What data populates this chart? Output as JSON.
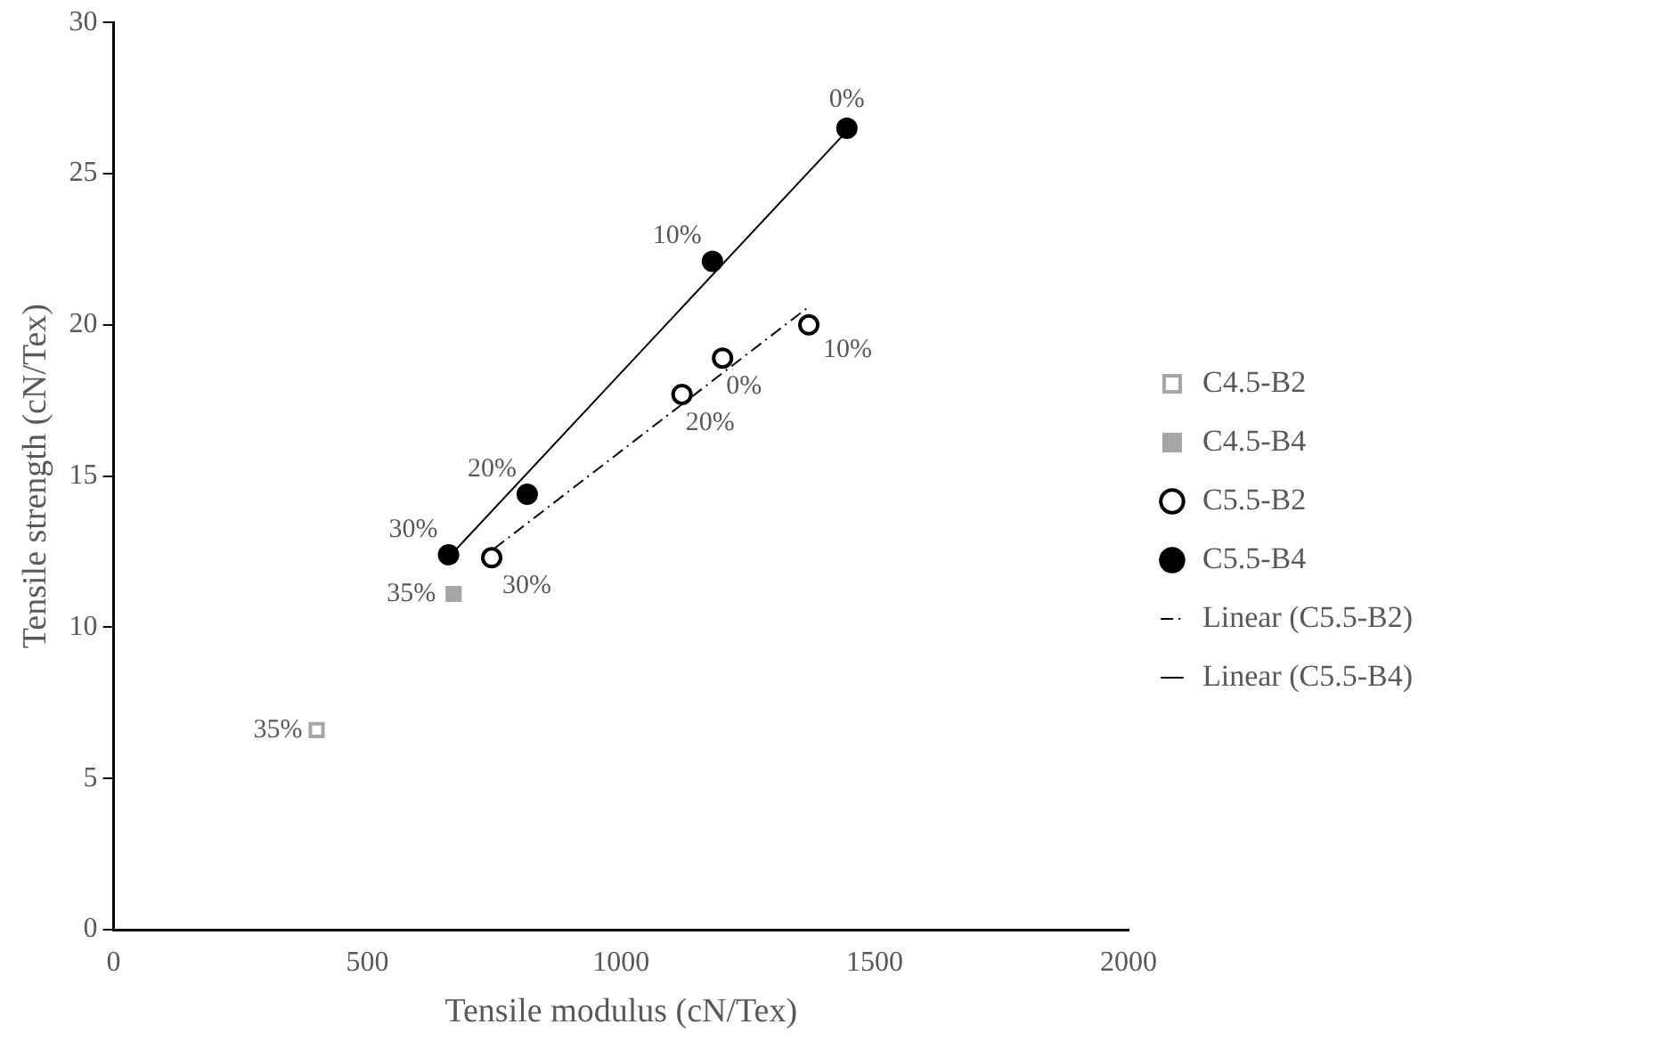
{
  "chart_data": {
    "type": "scatter",
    "xlabel": "Tensile modulus (cN/Tex)",
    "ylabel": "Tensile strength (cN/Tex)",
    "xlim": [
      0,
      2000
    ],
    "xticks": [
      0,
      500,
      1000,
      1500,
      2000
    ],
    "ylim": [
      0,
      30
    ],
    "yticks": [
      0,
      5,
      10,
      15,
      20,
      25,
      30
    ],
    "grid": false,
    "legend": "right",
    "annotations": [
      {
        "text": "35%",
        "x": 400,
        "y": 6.6
      },
      {
        "text": "35%",
        "x": 670,
        "y": 11.1
      },
      {
        "text": "0%",
        "x": 1200,
        "y": 18.9
      },
      {
        "text": "10%",
        "x": 1370,
        "y": 20.0
      },
      {
        "text": "20%",
        "x": 1120,
        "y": 17.7
      },
      {
        "text": "30%",
        "x": 745,
        "y": 12.3
      },
      {
        "text": "0%",
        "x": 1445,
        "y": 26.5
      },
      {
        "text": "10%",
        "x": 1180,
        "y": 22.1
      },
      {
        "text": "20%",
        "x": 815,
        "y": 14.4
      },
      {
        "text": "30%",
        "x": 660,
        "y": 12.4
      }
    ],
    "series": [
      {
        "name": "C4.5-B2",
        "color": "#a6a6a6",
        "marker": "square",
        "x": [
          400
        ],
        "values": [
          6.6
        ]
      },
      {
        "name": "C4.5-B4",
        "color": "#a6a6a6",
        "marker": "square",
        "x": [
          670
        ],
        "values": [
          11.1
        ]
      },
      {
        "name": "C5.5-B2",
        "color": "#000000",
        "marker": "circle",
        "x": [
          1200,
          1370,
          1120,
          745
        ],
        "values": [
          18.9,
          20.0,
          17.7,
          12.3
        ]
      },
      {
        "name": "C5.5-B4",
        "color": "#000000",
        "marker": "circle",
        "x": [
          1445,
          1180,
          815,
          660
        ],
        "values": [
          26.5,
          22.1,
          14.4,
          12.4
        ]
      },
      {
        "name": "Linear (C5.5-B2)",
        "type": "line",
        "color": "#000000",
        "line_style": "dashed",
        "marker": "none",
        "x": [
          750,
          1370
        ],
        "values": [
          12.6,
          20.6
        ]
      },
      {
        "name": "Linear (C5.5-B4)",
        "type": "line",
        "color": "#000000",
        "line_style": "solid",
        "marker": "none",
        "x": [
          665,
          1450
        ],
        "values": [
          12.4,
          26.5
        ]
      }
    ]
  }
}
